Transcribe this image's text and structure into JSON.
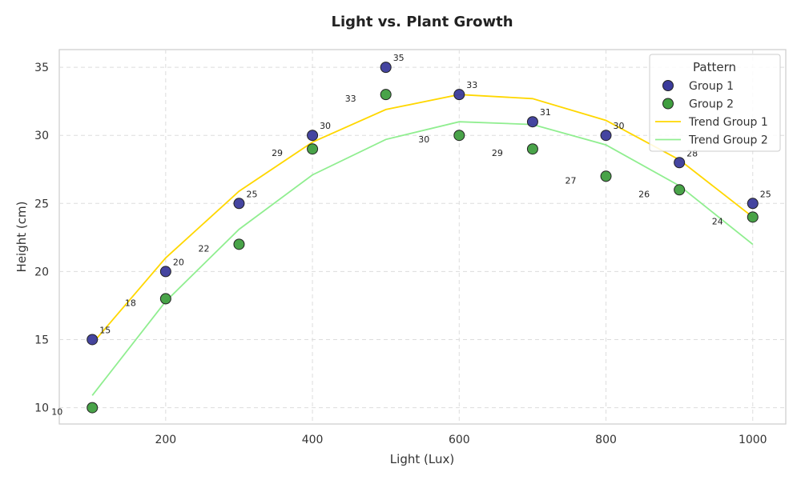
{
  "chart_data": {
    "type": "scatter",
    "title": "Light vs. Plant Growth",
    "xlabel": "Light (Lux)",
    "ylabel": "Height (cm)",
    "xlim": [
      55,
      1045
    ],
    "ylim": [
      8.8,
      36.3
    ],
    "x_ticks": [
      200,
      400,
      600,
      800,
      1000
    ],
    "y_ticks": [
      10,
      15,
      20,
      25,
      30,
      35
    ],
    "grid": true,
    "legend": {
      "title": "Pattern",
      "placement": "top-right",
      "entries": [
        "Group 1",
        "Group 2",
        "Trend Group 1",
        "Trend Group 2"
      ]
    },
    "x": [
      100,
      200,
      300,
      400,
      500,
      600,
      700,
      800,
      900,
      1000
    ],
    "series": [
      {
        "name": "Group 1",
        "kind": "scatter",
        "color": "#3b3b9b",
        "values": [
          15,
          20,
          25,
          30,
          35,
          33,
          31,
          30,
          28,
          25
        ],
        "labels": [
          "15",
          "20",
          "25",
          "30",
          "35",
          "33",
          "31",
          "30",
          "28",
          "25"
        ]
      },
      {
        "name": "Group 2",
        "kind": "scatter",
        "color": "#3f9e3f",
        "values": [
          10,
          18,
          22,
          29,
          33,
          30,
          29,
          27,
          26,
          24
        ],
        "labels": [
          "10",
          "18",
          "22",
          "29",
          "33",
          "30",
          "29",
          "27",
          "26",
          "24"
        ]
      },
      {
        "name": "Trend Group 1",
        "kind": "line",
        "color": "#ffd700",
        "values": [
          14.7,
          21.0,
          25.9,
          29.5,
          31.9,
          33.0,
          32.7,
          31.1,
          28.2,
          24.0
        ]
      },
      {
        "name": "Trend Group 2",
        "kind": "line",
        "color": "#90ee90",
        "values": [
          10.9,
          17.8,
          23.1,
          27.1,
          29.7,
          31.0,
          30.8,
          29.3,
          26.3,
          22.0
        ]
      }
    ]
  }
}
